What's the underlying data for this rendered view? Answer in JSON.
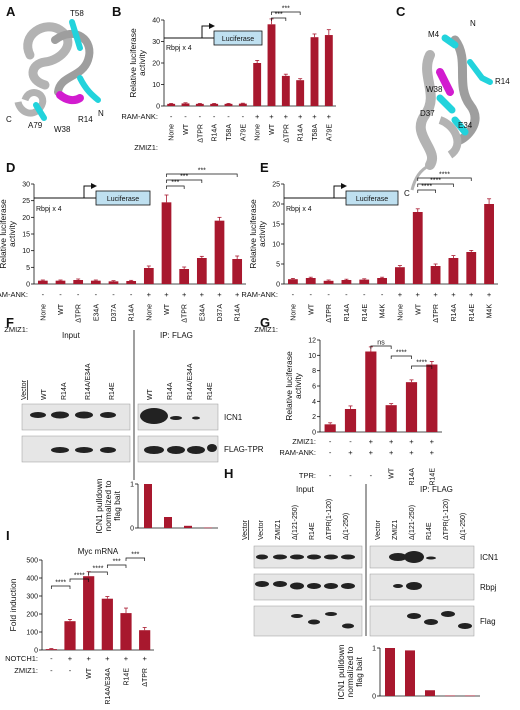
{
  "panel_labels": {
    "A": "A",
    "B": "B",
    "C": "C",
    "D": "D",
    "E": "E",
    "F": "F",
    "G": "G",
    "H": "H",
    "I": "I"
  },
  "colors": {
    "bar": "#a8182e",
    "structure": "#b3b3b3",
    "highlight_cyan": "#22d3dc",
    "highlight_magenta": "#d21ccf",
    "text": "#111111"
  },
  "structure_A": {
    "labels": [
      "T58",
      "A79",
      "R14",
      "W38",
      "N",
      "C"
    ]
  },
  "structure_C": {
    "labels": [
      "M4",
      "N",
      "W38",
      "R14",
      "D37",
      "E34",
      "C"
    ]
  },
  "reporter": {
    "promoter": "Rbpj x 4",
    "gene": "Luciferase"
  },
  "y_labels": {
    "luc": "Relative luciferase activity",
    "fold": "Fold induction",
    "pulldown": "ICN1 pulldown normalized to flag bait"
  },
  "row_labels": {
    "ram": "RAM-ANK:",
    "zmiz1": "ZMIZ1:",
    "tpr": "TPR:",
    "notch1": "NOTCH1:"
  },
  "chart_data": [
    {
      "panel": "B",
      "type": "bar",
      "ylabel": "Relative luciferase activity",
      "ylim": [
        0,
        40
      ],
      "yticks": [
        0,
        10,
        20,
        30,
        40
      ],
      "categories": [
        "None",
        "WT",
        "ΔTPR",
        "R14A",
        "T58A",
        "A79E",
        "None",
        "WT",
        "ΔTPR",
        "R14A",
        "T58A",
        "A79E"
      ],
      "ram_ank": [
        "-",
        "-",
        "-",
        "-",
        "-",
        "-",
        "+",
        "+",
        "+",
        "+",
        "+",
        "+"
      ],
      "values": [
        1.0,
        1.2,
        1.0,
        1.0,
        1.0,
        1.1,
        20,
        38,
        14,
        12,
        32,
        33
      ],
      "errors": [
        0.2,
        0.3,
        0.2,
        0.2,
        0.2,
        0.2,
        1.2,
        2.5,
        0.8,
        0.7,
        1.5,
        2.5
      ],
      "brackets": [
        {
          "from": 7,
          "to": 8,
          "label": "***"
        },
        {
          "from": 7,
          "to": 9,
          "label": "***"
        }
      ]
    },
    {
      "panel": "D",
      "type": "bar",
      "ylabel": "Relative luciferase activity",
      "ylim": [
        0,
        30
      ],
      "yticks": [
        0,
        5,
        10,
        15,
        20,
        25,
        30
      ],
      "categories": [
        "None",
        "WT",
        "ΔTPR",
        "E34A",
        "D37A",
        "R14A",
        "None",
        "WT",
        "ΔTPR",
        "E34A",
        "D37A",
        "R14A"
      ],
      "ram_ank": [
        "-",
        "-",
        "-",
        "-",
        "-",
        "-",
        "+",
        "+",
        "+",
        "+",
        "+",
        "+"
      ],
      "values": [
        1.0,
        1.0,
        1.2,
        1.0,
        0.8,
        0.9,
        4.8,
        24.5,
        4.5,
        7.8,
        19,
        7.5
      ],
      "errors": [
        0.2,
        0.2,
        0.3,
        0.2,
        0.2,
        0.2,
        0.6,
        2.2,
        0.6,
        0.5,
        1.0,
        0.9
      ],
      "brackets": [
        {
          "from": 7,
          "to": 8,
          "label": "***"
        },
        {
          "from": 7,
          "to": 9,
          "label": "***"
        },
        {
          "from": 7,
          "to": 11,
          "label": "***"
        }
      ]
    },
    {
      "panel": "E",
      "type": "bar",
      "ylabel": "Relative luciferase activity",
      "ylim": [
        0,
        25
      ],
      "yticks": [
        0,
        5,
        10,
        15,
        20,
        25
      ],
      "categories": [
        "None",
        "WT",
        "ΔTPR",
        "R14A",
        "R14E",
        "M4K",
        "None",
        "WT",
        "ΔTPR",
        "R14A",
        "R14E",
        "M4K"
      ],
      "ram_ank": [
        "-",
        "-",
        "-",
        "-",
        "-",
        "-",
        "+",
        "+",
        "+",
        "+",
        "+",
        "+"
      ],
      "values": [
        1.2,
        1.5,
        0.8,
        1.0,
        1.1,
        1.5,
        4.2,
        18,
        4.5,
        6.5,
        8.0,
        20
      ],
      "errors": [
        0.2,
        0.2,
        0.2,
        0.2,
        0.2,
        0.2,
        0.4,
        0.8,
        0.5,
        0.6,
        0.4,
        1.3
      ],
      "brackets": [
        {
          "from": 7,
          "to": 8,
          "label": "****"
        },
        {
          "from": 7,
          "to": 9,
          "label": "****"
        },
        {
          "from": 7,
          "to": 10,
          "label": "****"
        }
      ]
    },
    {
      "panel": "G",
      "type": "bar",
      "ylabel": "Relative luciferase activity",
      "ylim": [
        0,
        12
      ],
      "yticks": [
        0,
        2,
        4,
        6,
        8,
        10,
        12
      ],
      "categories": [
        "1",
        "2",
        "3",
        "4",
        "5",
        "6"
      ],
      "zmiz1": [
        "-",
        "-",
        "+",
        "+",
        "+",
        "+"
      ],
      "ram_ank": [
        "-",
        "+",
        "+",
        "+",
        "+",
        "+"
      ],
      "tpr": [
        "-",
        "-",
        "-",
        "WT",
        "R14A",
        "R14E"
      ],
      "values": [
        1.0,
        3.0,
        10.5,
        3.5,
        6.5,
        8.8
      ],
      "errors": [
        0.2,
        0.4,
        0.6,
        0.2,
        0.3,
        0.4
      ],
      "brackets": [
        {
          "from": 2,
          "to": 3,
          "label": "ns"
        },
        {
          "from": 3,
          "to": 4,
          "label": "****"
        },
        {
          "from": 4,
          "to": 5,
          "label": "****"
        }
      ]
    },
    {
      "panel": "I",
      "type": "bar",
      "title": "Myc mRNA",
      "ylabel": "Fold induction",
      "ylim": [
        0,
        500
      ],
      "yticks": [
        0,
        100,
        200,
        300,
        400,
        500
      ],
      "categories": [
        "1",
        "2",
        "3",
        "4",
        "5",
        "6"
      ],
      "notch1": [
        "-",
        "+",
        "+",
        "+",
        "+",
        "+"
      ],
      "zmiz1": [
        "-",
        "-",
        "WT",
        "R14A/E34A",
        "R14E",
        "ΔTPR"
      ],
      "values": [
        5,
        160,
        410,
        285,
        205,
        110
      ],
      "errors": [
        3,
        10,
        25,
        12,
        28,
        15
      ],
      "brackets": [
        {
          "from": 0,
          "to": 1,
          "label": "****"
        },
        {
          "from": 1,
          "to": 2,
          "label": "****"
        },
        {
          "from": 2,
          "to": 3,
          "label": "****"
        },
        {
          "from": 3,
          "to": 4,
          "label": "***"
        },
        {
          "from": 4,
          "to": 5,
          "label": "***"
        }
      ]
    },
    {
      "panel": "F",
      "type": "bar",
      "ylabel": "ICN1 pulldown normalized to flag bait",
      "ylim": [
        0,
        1
      ],
      "yticks": [
        0,
        1
      ],
      "categories": [
        "WT",
        "R14A",
        "R14A/E34A",
        "R14E"
      ],
      "values": [
        1.0,
        0.25,
        0.05,
        0.01
      ]
    },
    {
      "panel": "H",
      "type": "bar",
      "ylabel": "ICN1 pulldown normalized to flag bait",
      "ylim": [
        0,
        1
      ],
      "yticks": [
        0,
        1
      ],
      "categories": [
        "ZMIZ1",
        "Δ(121-250)",
        "R14E",
        "ΔTPR(1-120)",
        "Δ(1-250)"
      ],
      "values": [
        1.0,
        0.95,
        0.12,
        0.01,
        0.01
      ]
    }
  ],
  "blot_F": {
    "input_header": "Input",
    "ip_header": "IP: FLAG",
    "lanes": [
      "Vector",
      "WT",
      "R14A",
      "R14A/E34A",
      "R14E"
    ],
    "bands": [
      "ICN1",
      "FLAG-TPR"
    ]
  },
  "blot_H": {
    "input_header": "Input",
    "ip_header": "IP: FLAG",
    "lanes": [
      "Vector",
      "ZMIZ1",
      "Δ(121-250)",
      "R14E",
      "ΔTPR(1-120)",
      "Δ(1-250)"
    ],
    "bands": [
      "ICN1",
      "Rbpj",
      "Flag"
    ]
  }
}
